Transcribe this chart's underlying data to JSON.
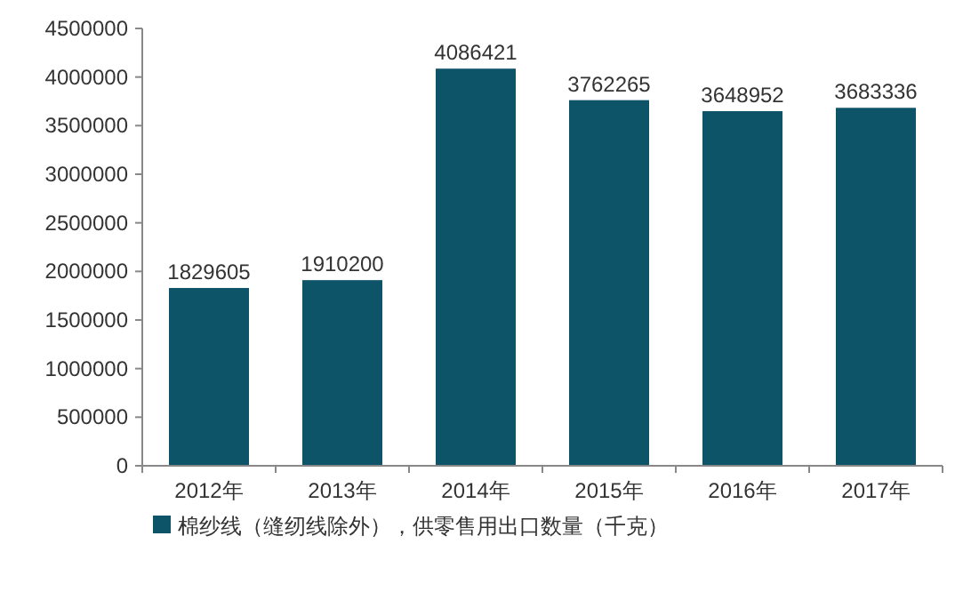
{
  "chart_data": {
    "type": "bar",
    "categories": [
      "2012年",
      "2013年",
      "2014年",
      "2015年",
      "2016年",
      "2017年"
    ],
    "series": [
      {
        "name": "棉纱线（缝纫线除外），供零售用出口数量（千克）",
        "color": "#0e5469",
        "values": [
          1829605,
          1910200,
          4086421,
          3762265,
          3648952,
          3683336
        ]
      }
    ],
    "ylim": [
      0,
      4500000
    ],
    "yticks": [
      0,
      500000,
      1000000,
      1500000,
      2000000,
      2500000,
      3000000,
      3500000,
      4000000,
      4500000
    ],
    "data_labels": true,
    "legend": "bottom"
  }
}
